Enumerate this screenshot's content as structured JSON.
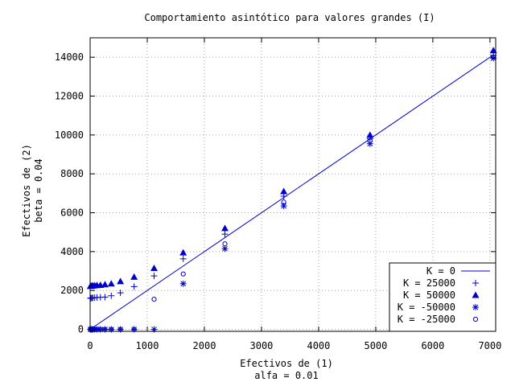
{
  "chart_data": {
    "type": "scatter",
    "title": "Comportamiento asintótico para valores grandes (I)",
    "xlabel_lines": [
      "Efectivos de (1)",
      "alfa = 0.01"
    ],
    "ylabel_lines": [
      "Efectivos de (2)",
      "beta  = 0.04"
    ],
    "xlim": [
      0,
      7100
    ],
    "ylim": [
      -100,
      15000
    ],
    "x_ticks": [
      0,
      1000,
      2000,
      3000,
      4000,
      5000,
      6000,
      7000
    ],
    "x_tick_labels": [
      "0",
      "1000",
      "2000",
      "3000",
      "4000",
      "5000",
      "6000",
      "7000"
    ],
    "y_ticks": [
      0,
      2000,
      4000,
      6000,
      8000,
      10000,
      12000,
      14000
    ],
    "y_tick_labels": [
      "0",
      "2000",
      "4000",
      "6000",
      "8000",
      "10000",
      "12000",
      "14000"
    ],
    "grid": true,
    "legend_position": "bottom-right",
    "line": {
      "name": "K = 0",
      "x": [
        0,
        7070
      ],
      "y": [
        0,
        14140
      ]
    },
    "series": [
      {
        "name": "K = 25000",
        "marker": "plus",
        "x": [
          5,
          15,
          30,
          50,
          80,
          120,
          180,
          260,
          370,
          530,
          770,
          1120,
          1630,
          2360,
          3390,
          4900,
          7060
        ],
        "y": [
          1600,
          1610,
          1620,
          1620,
          1630,
          1640,
          1650,
          1660,
          1730,
          1880,
          2200,
          2750,
          3630,
          4900,
          6850,
          9800,
          14100
        ]
      },
      {
        "name": "K = 50000",
        "marker": "triangle",
        "x": [
          5,
          15,
          30,
          50,
          80,
          120,
          180,
          260,
          370,
          530,
          770,
          1120,
          1630,
          2360,
          3390,
          4900,
          7060
        ],
        "y": [
          2220,
          2230,
          2240,
          2250,
          2260,
          2270,
          2280,
          2310,
          2350,
          2470,
          2700,
          3150,
          3950,
          5200,
          7100,
          10000,
          14350
        ]
      },
      {
        "name": "K = -50000",
        "marker": "star",
        "x": [
          5,
          15,
          30,
          50,
          80,
          120,
          180,
          260,
          370,
          530,
          770,
          1120,
          1630,
          2360,
          3390,
          4900,
          7060
        ],
        "y": [
          0,
          0,
          0,
          0,
          0,
          0,
          0,
          0,
          0,
          0,
          0,
          0,
          2350,
          4150,
          6350,
          9550,
          13950
        ]
      },
      {
        "name": "K = -25000",
        "marker": "circle",
        "x": [
          5,
          15,
          30,
          50,
          80,
          120,
          180,
          260,
          370,
          530,
          770,
          1120,
          1630,
          2360,
          3390,
          4900,
          7060
        ],
        "y": [
          0,
          0,
          0,
          0,
          0,
          0,
          0,
          0,
          0,
          0,
          0,
          1550,
          2850,
          4400,
          6550,
          9700,
          14000
        ]
      }
    ]
  }
}
